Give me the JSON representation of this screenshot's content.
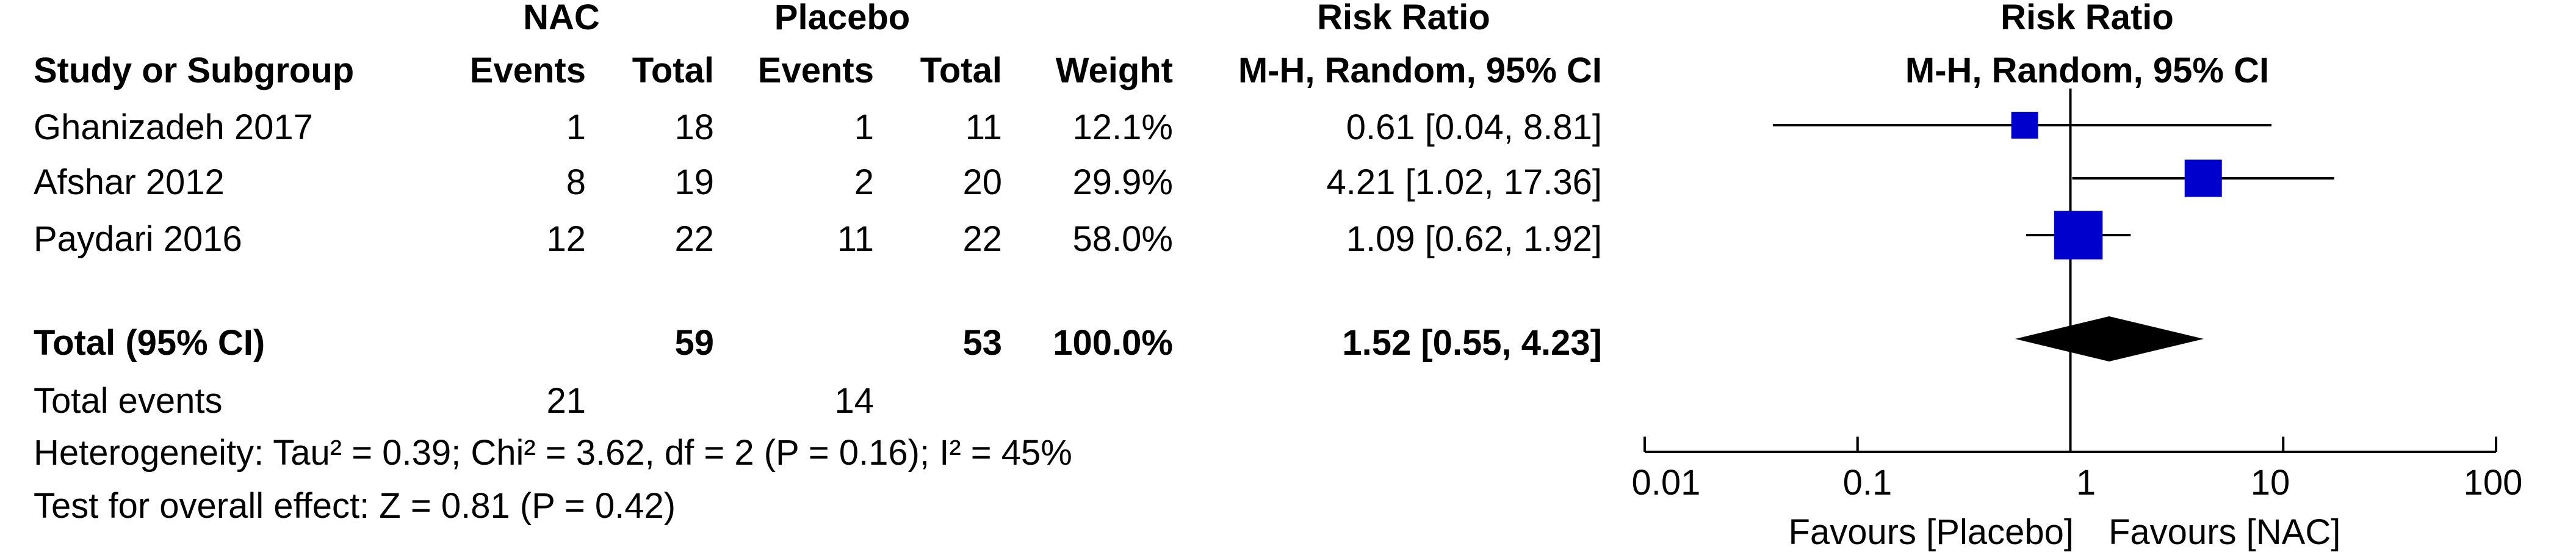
{
  "header": {
    "group1": "NAC",
    "group2": "Placebo",
    "rr_title": "Risk Ratio",
    "rr_title_plot": "Risk Ratio",
    "col_study": "Study or Subgroup",
    "col_events1": "Events",
    "col_total1": "Total",
    "col_events2": "Events",
    "col_total2": "Total",
    "col_weight": "Weight",
    "col_method": "M-H, Random, 95% CI",
    "col_method_plot": "M-H, Random, 95% CI"
  },
  "studies": [
    {
      "name": "Ghanizadeh 2017",
      "events1": "1",
      "total1": "18",
      "events2": "1",
      "total2": "11",
      "weight": "12.1%",
      "ci_text": "0.61 [0.04, 8.81]"
    },
    {
      "name": "Afshar 2012",
      "events1": "8",
      "total1": "19",
      "events2": "2",
      "total2": "20",
      "weight": "29.9%",
      "ci_text": "4.21 [1.02, 17.36]"
    },
    {
      "name": "Paydari 2016",
      "events1": "12",
      "total1": "22",
      "events2": "11",
      "total2": "22",
      "weight": "58.0%",
      "ci_text": "1.09 [0.62, 1.92]"
    }
  ],
  "total": {
    "label": "Total (95% CI)",
    "total1": "59",
    "total2": "53",
    "weight": "100.0%",
    "ci_text": "1.52 [0.55, 4.23]"
  },
  "total_events": {
    "label": "Total events",
    "events1": "21",
    "events2": "14"
  },
  "heterogeneity": "Heterogeneity: Tau² = 0.39; Chi² = 3.62, df = 2 (P = 0.16); I² = 45%",
  "overall_effect": "Test for overall effect: Z = 0.81 (P = 0.42)",
  "axis": {
    "ticks": [
      0.01,
      0.1,
      1,
      10,
      100
    ],
    "tick_labels": [
      "0.01",
      "0.1",
      "1",
      "10",
      "100"
    ],
    "favours_left": "Favours [Placebo]",
    "favours_right": "Favours [NAC]"
  },
  "colors": {
    "study_marker": "#0000cc",
    "summary_diamond": "#000000",
    "lines": "#000000"
  },
  "chart_data": {
    "type": "forest",
    "scale": "log",
    "xlim": [
      0.01,
      100
    ],
    "reference_line": 1,
    "studies": [
      {
        "name": "Ghanizadeh 2017",
        "rr": 0.61,
        "lower": 0.04,
        "upper": 8.81,
        "weight": 12.1
      },
      {
        "name": "Afshar 2012",
        "rr": 4.21,
        "lower": 1.02,
        "upper": 17.36,
        "weight": 29.9
      },
      {
        "name": "Paydari 2016",
        "rr": 1.09,
        "lower": 0.62,
        "upper": 1.92,
        "weight": 58.0
      }
    ],
    "summary": {
      "name": "Total (95% CI)",
      "rr": 1.52,
      "lower": 0.55,
      "upper": 4.23
    }
  }
}
